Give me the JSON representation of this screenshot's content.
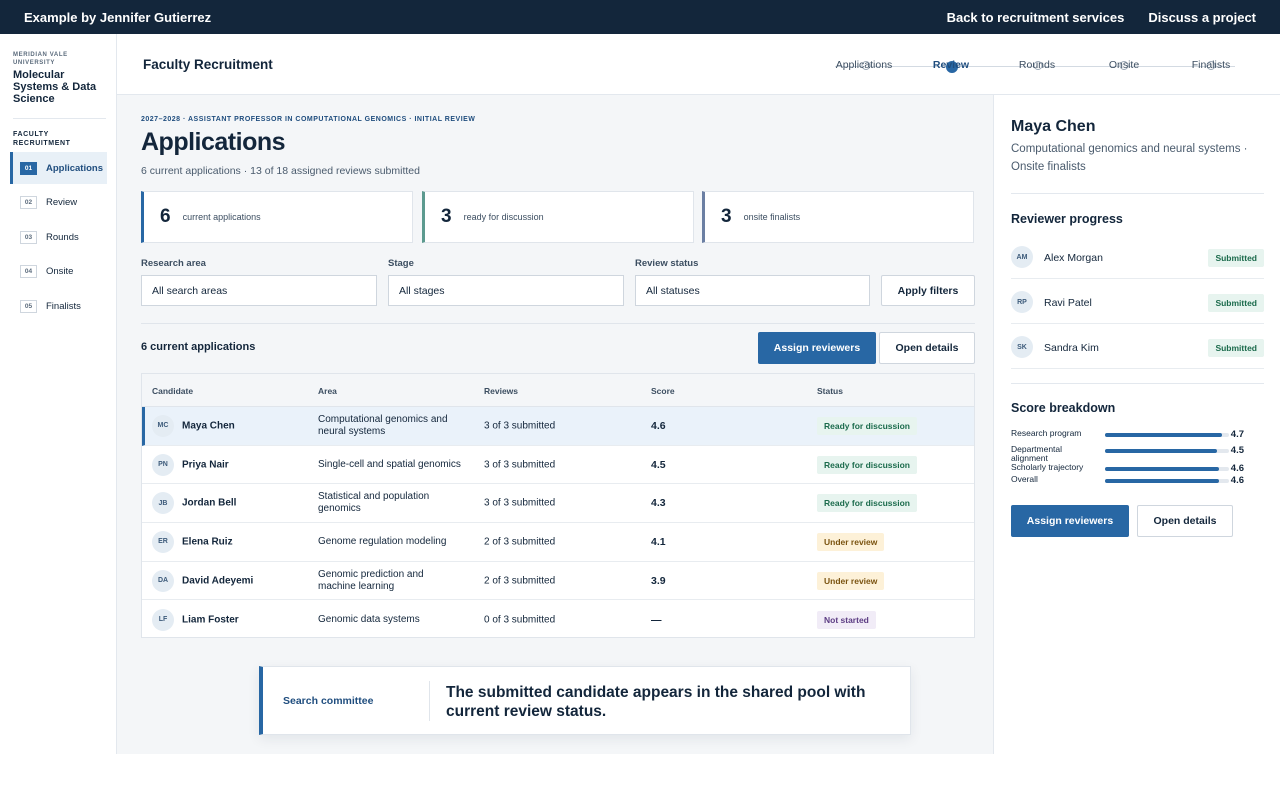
{
  "topbar": {
    "left": "Example by Jennifer Gutierrez",
    "links": [
      "Back to recruitment services",
      "Discuss a project"
    ]
  },
  "sidebar": {
    "university": "MERIDIAN VALE UNIVERSITY",
    "department": "Molecular Systems & Data Science",
    "section": "FACULTY RECRUITMENT",
    "items": [
      {
        "num": "01",
        "label": "Applications",
        "active": true
      },
      {
        "num": "02",
        "label": "Review"
      },
      {
        "num": "03",
        "label": "Rounds"
      },
      {
        "num": "04",
        "label": "Onsite"
      },
      {
        "num": "05",
        "label": "Finalists"
      }
    ]
  },
  "header": {
    "title": "Faculty Recruitment",
    "steps": [
      "Applications",
      "Review",
      "Rounds",
      "Onsite",
      "Finalists"
    ],
    "active_step": "Review"
  },
  "main": {
    "eyebrow": "2027–2028 · ASSISTANT PROFESSOR IN COMPUTATIONAL GENOMICS · INITIAL REVIEW",
    "title": "Applications",
    "subtitle": "6 current applications · 13 of 18 assigned reviews submitted",
    "stats": [
      {
        "value": "6",
        "label": "current applications",
        "color": "#2867a4"
      },
      {
        "value": "3",
        "label": "ready for discussion",
        "color": "#5c9a8f"
      },
      {
        "value": "3",
        "label": "onsite finalists",
        "color": "#6b7fa3"
      }
    ],
    "filters": {
      "research_area": {
        "label": "Research area",
        "value": "All search areas"
      },
      "stage": {
        "label": "Stage",
        "value": "All stages"
      },
      "review_status": {
        "label": "Review status",
        "value": "All statuses"
      },
      "apply": "Apply filters"
    },
    "list_title": "6 current applications",
    "assign_btn": "Assign reviewers",
    "details_btn": "Open details",
    "table": {
      "headers": [
        "Candidate",
        "Area",
        "Reviews",
        "Score",
        "Status"
      ],
      "rows": [
        {
          "initials": "MC",
          "name": "Maya Chen",
          "area": "Computational genomics and neural systems",
          "reviews": "3 of 3 submitted",
          "score": "4.6",
          "status": "Ready for discussion",
          "kind": "ready"
        },
        {
          "initials": "PN",
          "name": "Priya Nair",
          "area": "Single-cell and spatial genomics",
          "reviews": "3 of 3 submitted",
          "score": "4.5",
          "status": "Ready for discussion",
          "kind": "ready"
        },
        {
          "initials": "JB",
          "name": "Jordan Bell",
          "area": "Statistical and population genomics",
          "reviews": "3 of 3 submitted",
          "score": "4.3",
          "status": "Ready for discussion",
          "kind": "ready"
        },
        {
          "initials": "ER",
          "name": "Elena Ruiz",
          "area": "Genome regulation modeling",
          "reviews": "2 of 3 submitted",
          "score": "4.1",
          "status": "Under review",
          "kind": "review"
        },
        {
          "initials": "DA",
          "name": "David Adeyemi",
          "area": "Genomic prediction and machine learning",
          "reviews": "2 of 3 submitted",
          "score": "3.9",
          "status": "Under review",
          "kind": "review"
        },
        {
          "initials": "LF",
          "name": "Liam Foster",
          "area": "Genomic data systems",
          "reviews": "0 of 3 submitted",
          "score": "—",
          "status": "Not started",
          "kind": "notstarted"
        }
      ]
    },
    "callout": {
      "label": "Search committee",
      "message": "The submitted candidate appears in the shared pool with current review status."
    }
  },
  "panel": {
    "name": "Maya Chen",
    "description": "Computational genomics and neural systems · Onsite finalists",
    "reviewer_heading": "Reviewer progress",
    "reviewers": [
      {
        "initials": "AM",
        "name": "Alex Morgan",
        "status": "Submitted"
      },
      {
        "initials": "RP",
        "name": "Ravi Patel",
        "status": "Submitted"
      },
      {
        "initials": "SK",
        "name": "Sandra Kim",
        "status": "Submitted"
      }
    ],
    "score_heading": "Score breakdown",
    "scores": [
      {
        "label": "Research program",
        "value": "4.7"
      },
      {
        "label": "Departmental alignment",
        "value": "4.5"
      },
      {
        "label": "Scholarly trajectory",
        "value": "4.6"
      },
      {
        "label": "Overall",
        "value": "4.6"
      }
    ],
    "assign_btn": "Assign reviewers",
    "details_btn": "Open details"
  }
}
